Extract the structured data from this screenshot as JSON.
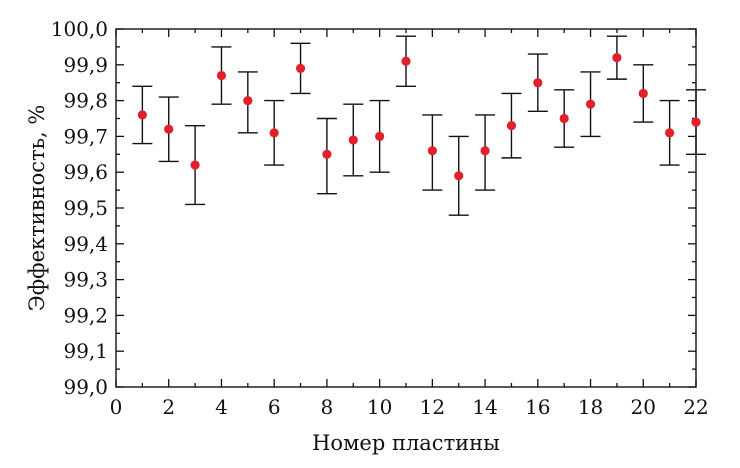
{
  "chart_data": {
    "type": "scatter",
    "title": "",
    "xlabel": "Номер пластины",
    "ylabel": "Эффективность, %",
    "xlim": [
      0,
      22
    ],
    "ylim": [
      99.0,
      100.0
    ],
    "x_ticks": [
      0,
      2,
      4,
      6,
      8,
      10,
      12,
      14,
      16,
      18,
      20,
      22
    ],
    "x_tick_labels": [
      "0",
      "2",
      "4",
      "6",
      "8",
      "10",
      "12",
      "14",
      "16",
      "18",
      "20",
      "22"
    ],
    "y_ticks": [
      99.0,
      99.1,
      99.2,
      99.3,
      99.4,
      99.5,
      99.6,
      99.7,
      99.8,
      99.9,
      100.0
    ],
    "y_tick_labels": [
      "99,0",
      "99,1",
      "99,2",
      "99,3",
      "99,4",
      "99,5",
      "99,6",
      "99,7",
      "99,8",
      "99,9",
      "100,0"
    ],
    "grid": false,
    "marker_color": "#e0202a",
    "points": [
      {
        "x": 1,
        "y": 99.76,
        "err_low": 99.68,
        "err_high": 99.84
      },
      {
        "x": 2,
        "y": 99.72,
        "err_low": 99.63,
        "err_high": 99.81
      },
      {
        "x": 3,
        "y": 99.62,
        "err_low": 99.51,
        "err_high": 99.73
      },
      {
        "x": 4,
        "y": 99.87,
        "err_low": 99.79,
        "err_high": 99.95
      },
      {
        "x": 5,
        "y": 99.8,
        "err_low": 99.71,
        "err_high": 99.88
      },
      {
        "x": 6,
        "y": 99.71,
        "err_low": 99.62,
        "err_high": 99.8
      },
      {
        "x": 7,
        "y": 99.89,
        "err_low": 99.82,
        "err_high": 99.96
      },
      {
        "x": 8,
        "y": 99.65,
        "err_low": 99.54,
        "err_high": 99.75
      },
      {
        "x": 9,
        "y": 99.69,
        "err_low": 99.59,
        "err_high": 99.79
      },
      {
        "x": 10,
        "y": 99.7,
        "err_low": 99.6,
        "err_high": 99.8
      },
      {
        "x": 11,
        "y": 99.91,
        "err_low": 99.84,
        "err_high": 99.98
      },
      {
        "x": 12,
        "y": 99.66,
        "err_low": 99.55,
        "err_high": 99.76
      },
      {
        "x": 13,
        "y": 99.59,
        "err_low": 99.48,
        "err_high": 99.7
      },
      {
        "x": 14,
        "y": 99.66,
        "err_low": 99.55,
        "err_high": 99.76
      },
      {
        "x": 15,
        "y": 99.73,
        "err_low": 99.64,
        "err_high": 99.82
      },
      {
        "x": 16,
        "y": 99.85,
        "err_low": 99.77,
        "err_high": 99.93
      },
      {
        "x": 17,
        "y": 99.75,
        "err_low": 99.67,
        "err_high": 99.83
      },
      {
        "x": 18,
        "y": 99.79,
        "err_low": 99.7,
        "err_high": 99.88
      },
      {
        "x": 19,
        "y": 99.92,
        "err_low": 99.86,
        "err_high": 99.98
      },
      {
        "x": 20,
        "y": 99.82,
        "err_low": 99.74,
        "err_high": 99.9
      },
      {
        "x": 21,
        "y": 99.71,
        "err_low": 99.62,
        "err_high": 99.8
      },
      {
        "x": 22,
        "y": 99.74,
        "err_low": 99.65,
        "err_high": 99.83
      }
    ]
  }
}
